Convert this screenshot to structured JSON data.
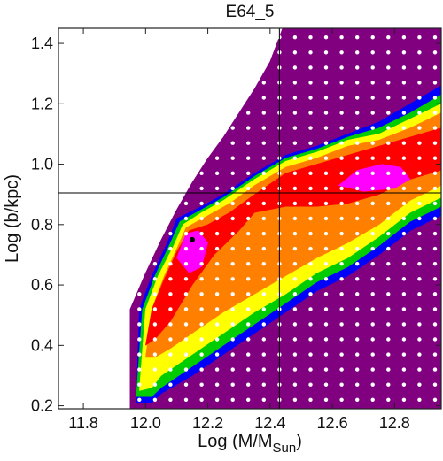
{
  "chart_data": {
    "type": "heatmap",
    "title": "E64_5",
    "xlabel": "Log (M/M",
    "xlabel_subscript": "Sun",
    "xlabel_suffix": ")",
    "ylabel": "Log (b/kpc)",
    "xlim": [
      11.72,
      12.95
    ],
    "ylim": [
      0.19,
      1.45
    ],
    "xticks": [
      11.8,
      12.0,
      12.2,
      12.4,
      12.6,
      12.8
    ],
    "xtick_labels": [
      "11.8",
      "12.0",
      "12.2",
      "12.4",
      "12.6",
      "12.8"
    ],
    "yticks": [
      0.2,
      0.4,
      0.6,
      0.8,
      1.0,
      1.2,
      1.4
    ],
    "ytick_labels": [
      "0.2",
      "0.4",
      "0.6",
      "0.8",
      "1.0",
      "1.2",
      "1.4"
    ],
    "grid": false,
    "reference_lines": {
      "x": 12.43,
      "y": 0.905
    },
    "best_fit_point": {
      "x": 12.15,
      "y": 0.75
    },
    "contour_colors": [
      "#800080",
      "#0000ff",
      "#00cc00",
      "#ffff00",
      "#ff8000",
      "#ff0000",
      "#ff00ff"
    ],
    "sample_points_color": "#ffffff",
    "bands": [
      {
        "level": 0,
        "color": "#800080",
        "points": [
          [
            11.95,
            0.19
          ],
          [
            11.95,
            0.52
          ],
          [
            12.0,
            0.64
          ],
          [
            12.05,
            0.75
          ],
          [
            12.1,
            0.85
          ],
          [
            12.15,
            0.94
          ],
          [
            12.2,
            1.02
          ],
          [
            12.25,
            1.09
          ],
          [
            12.3,
            1.17
          ],
          [
            12.35,
            1.25
          ],
          [
            12.4,
            1.34
          ],
          [
            12.44,
            1.45
          ],
          [
            12.95,
            1.45
          ],
          [
            12.95,
            0.19
          ]
        ]
      },
      {
        "level": 1,
        "color": "#0000ff",
        "points": [
          [
            11.97,
            0.21
          ],
          [
            11.98,
            0.52
          ],
          [
            12.02,
            0.63
          ],
          [
            12.07,
            0.74
          ],
          [
            12.1,
            0.82
          ],
          [
            12.18,
            0.86
          ],
          [
            12.25,
            0.9
          ],
          [
            12.35,
            0.97
          ],
          [
            12.45,
            1.03
          ],
          [
            12.55,
            1.06
          ],
          [
            12.65,
            1.1
          ],
          [
            12.75,
            1.14
          ],
          [
            12.85,
            1.2
          ],
          [
            12.95,
            1.26
          ],
          [
            12.95,
            0.83
          ],
          [
            12.85,
            0.78
          ],
          [
            12.75,
            0.7
          ],
          [
            12.65,
            0.63
          ],
          [
            12.55,
            0.58
          ],
          [
            12.45,
            0.51
          ],
          [
            12.35,
            0.44
          ],
          [
            12.25,
            0.37
          ],
          [
            12.15,
            0.3
          ],
          [
            12.05,
            0.24
          ],
          [
            12.02,
            0.21
          ]
        ]
      },
      {
        "level": 2,
        "color": "#00cc00",
        "points": [
          [
            11.97,
            0.23
          ],
          [
            11.99,
            0.52
          ],
          [
            12.03,
            0.63
          ],
          [
            12.08,
            0.74
          ],
          [
            12.11,
            0.81
          ],
          [
            12.18,
            0.85
          ],
          [
            12.25,
            0.89
          ],
          [
            12.35,
            0.96
          ],
          [
            12.45,
            1.02
          ],
          [
            12.55,
            1.05
          ],
          [
            12.65,
            1.09
          ],
          [
            12.75,
            1.12
          ],
          [
            12.85,
            1.17
          ],
          [
            12.95,
            1.23
          ],
          [
            12.95,
            0.86
          ],
          [
            12.85,
            0.81
          ],
          [
            12.75,
            0.73
          ],
          [
            12.65,
            0.66
          ],
          [
            12.55,
            0.61
          ],
          [
            12.45,
            0.54
          ],
          [
            12.35,
            0.47
          ],
          [
            12.25,
            0.4
          ],
          [
            12.15,
            0.33
          ],
          [
            12.05,
            0.26
          ],
          [
            12.02,
            0.23
          ]
        ]
      },
      {
        "level": 3,
        "color": "#ffff00",
        "points": [
          [
            11.98,
            0.25
          ],
          [
            12.0,
            0.52
          ],
          [
            12.04,
            0.63
          ],
          [
            12.09,
            0.73
          ],
          [
            12.12,
            0.8
          ],
          [
            12.18,
            0.84
          ],
          [
            12.25,
            0.88
          ],
          [
            12.35,
            0.95
          ],
          [
            12.45,
            1.01
          ],
          [
            12.55,
            1.04
          ],
          [
            12.65,
            1.08
          ],
          [
            12.75,
            1.1
          ],
          [
            12.85,
            1.15
          ],
          [
            12.95,
            1.2
          ],
          [
            12.95,
            0.89
          ],
          [
            12.85,
            0.84
          ],
          [
            12.75,
            0.76
          ],
          [
            12.65,
            0.69
          ],
          [
            12.55,
            0.64
          ],
          [
            12.45,
            0.57
          ],
          [
            12.35,
            0.51
          ],
          [
            12.25,
            0.44
          ],
          [
            12.15,
            0.37
          ],
          [
            12.05,
            0.3
          ],
          [
            12.02,
            0.26
          ]
        ]
      },
      {
        "level": 4,
        "color": "#ff8000",
        "points": [
          [
            12.0,
            0.36
          ],
          [
            12.02,
            0.52
          ],
          [
            12.06,
            0.63
          ],
          [
            12.1,
            0.72
          ],
          [
            12.13,
            0.79
          ],
          [
            12.2,
            0.83
          ],
          [
            12.27,
            0.87
          ],
          [
            12.35,
            0.93
          ],
          [
            12.45,
            0.99
          ],
          [
            12.55,
            1.02
          ],
          [
            12.65,
            1.06
          ],
          [
            12.75,
            1.08
          ],
          [
            12.85,
            1.12
          ],
          [
            12.95,
            1.17
          ],
          [
            12.95,
            0.93
          ],
          [
            12.85,
            0.88
          ],
          [
            12.75,
            0.8
          ],
          [
            12.65,
            0.74
          ],
          [
            12.55,
            0.69
          ],
          [
            12.45,
            0.63
          ],
          [
            12.35,
            0.57
          ],
          [
            12.25,
            0.51
          ],
          [
            12.15,
            0.44
          ],
          [
            12.08,
            0.39
          ],
          [
            12.03,
            0.36
          ]
        ]
      },
      {
        "level": 5,
        "color": "#ff0000",
        "points": [
          [
            12.0,
            0.4
          ],
          [
            12.02,
            0.52
          ],
          [
            12.06,
            0.62
          ],
          [
            12.1,
            0.71
          ],
          [
            12.14,
            0.78
          ],
          [
            12.2,
            0.8
          ],
          [
            12.27,
            0.84
          ],
          [
            12.35,
            0.9
          ],
          [
            12.45,
            0.97
          ],
          [
            12.55,
            1.0
          ],
          [
            12.65,
            1.03
          ],
          [
            12.75,
            1.06
          ],
          [
            12.85,
            1.09
          ],
          [
            12.95,
            1.12
          ],
          [
            12.95,
            0.98
          ],
          [
            12.85,
            0.95
          ],
          [
            12.75,
            0.9
          ],
          [
            12.65,
            0.87
          ],
          [
            12.55,
            0.86
          ],
          [
            12.45,
            0.86
          ],
          [
            12.35,
            0.84
          ],
          [
            12.3,
            0.78
          ],
          [
            12.22,
            0.7
          ],
          [
            12.15,
            0.6
          ],
          [
            12.08,
            0.48
          ],
          [
            12.03,
            0.42
          ]
        ]
      },
      {
        "level": 6,
        "color": "#ff00ff",
        "points": [
          [
            12.1,
            0.69
          ],
          [
            12.13,
            0.77
          ],
          [
            12.17,
            0.78
          ],
          [
            12.2,
            0.74
          ],
          [
            12.18,
            0.66
          ],
          [
            12.14,
            0.64
          ]
        ]
      },
      {
        "level": 6,
        "color": "#ff00ff",
        "points": [
          [
            12.62,
            0.93
          ],
          [
            12.68,
            0.98
          ],
          [
            12.76,
            1.0
          ],
          [
            12.82,
            0.99
          ],
          [
            12.85,
            0.95
          ],
          [
            12.8,
            0.92
          ],
          [
            12.7,
            0.91
          ]
        ]
      }
    ],
    "sample_grid": {
      "x_start": 11.98,
      "x_step": 0.05,
      "y_start": 0.22,
      "y_step": 0.05
    }
  }
}
